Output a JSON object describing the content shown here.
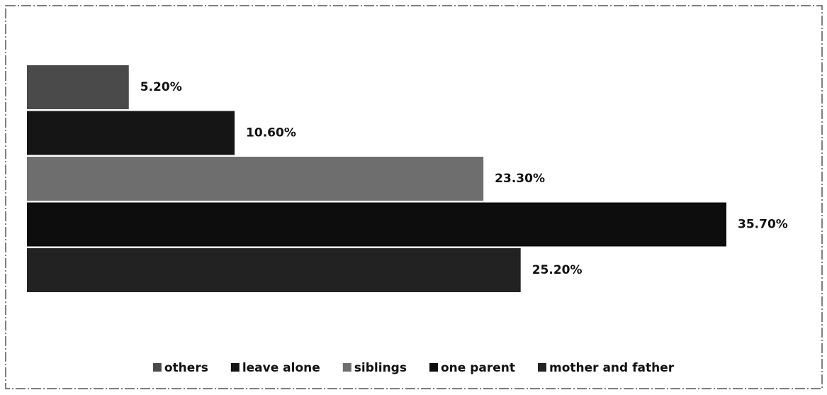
{
  "chart_data": {
    "type": "bar",
    "orientation": "horizontal",
    "categories": [
      null
    ],
    "series": [
      {
        "name": "others",
        "color": "#4a4a4a",
        "values": [
          5.2
        ],
        "value_labels": [
          "5.20%"
        ]
      },
      {
        "name": "leave alone",
        "color": "#151515",
        "values": [
          10.6
        ],
        "value_labels": [
          "10.60%"
        ]
      },
      {
        "name": "siblings",
        "color": "#6e6e6e",
        "values": [
          23.3
        ],
        "value_labels": [
          "23.30%"
        ]
      },
      {
        "name": "one parent",
        "color": "#0d0d0d",
        "values": [
          35.7
        ],
        "value_labels": [
          "35.70%"
        ]
      },
      {
        "name": "mother and father",
        "color": "#222222",
        "values": [
          25.2
        ],
        "value_labels": [
          "25.20%"
        ]
      }
    ],
    "legend": "bottom"
  }
}
